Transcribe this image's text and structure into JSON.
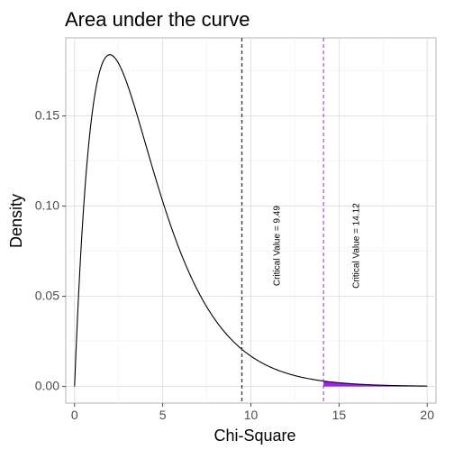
{
  "chart_data": {
    "type": "line",
    "title": "Area under the curve",
    "xlabel": "Chi-Square",
    "ylabel": "Density",
    "xlim": [
      -0.5,
      20.5
    ],
    "ylim": [
      -0.0092,
      0.1933
    ],
    "x_ticks": [
      {
        "value": 0,
        "label": "0"
      },
      {
        "value": 5,
        "label": "5"
      },
      {
        "value": 10,
        "label": "10"
      },
      {
        "value": 15,
        "label": "15"
      },
      {
        "value": 20,
        "label": "20"
      }
    ],
    "y_ticks": [
      {
        "value": 0.0,
        "label": "0.00"
      },
      {
        "value": 0.05,
        "label": "0.05"
      },
      {
        "value": 0.1,
        "label": "0.10"
      },
      {
        "value": 0.15,
        "label": "0.15"
      }
    ],
    "grid": true,
    "theme": "light",
    "curve": {
      "distribution": "chi-square",
      "df": 4,
      "x_range": [
        0,
        20
      ],
      "color": "#000000"
    },
    "shaded_area": {
      "from": 14.12,
      "to": 20,
      "color": "#a020f0"
    },
    "vlines": [
      {
        "x": 9.49,
        "color": "#404040",
        "style": "dashed"
      },
      {
        "x": 14.12,
        "color": "#8b2be2",
        "style": "dashed"
      }
    ],
    "annotations": [
      {
        "text": "Critical Value = 9.49",
        "x": 11.5,
        "y": 0.078,
        "angle": 90
      },
      {
        "text": "Critical Value = 14.12",
        "x": 16,
        "y": 0.078,
        "angle": 90
      }
    ]
  }
}
